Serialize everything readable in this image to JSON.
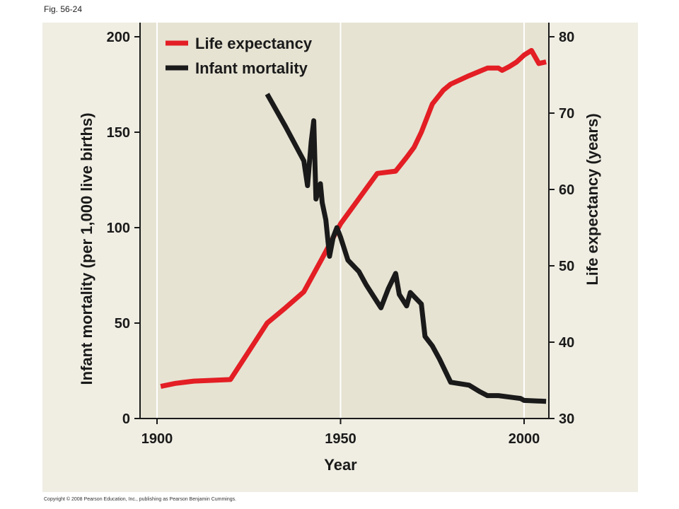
{
  "figure_label": "Fig. 56-24",
  "copyright": "Copyright © 2008 Pearson Education, Inc., publishing as Pearson Benjamin Cummings.",
  "chart_data": {
    "type": "line",
    "xlabel": "Year",
    "ylabel_left": "Infant mortality (per 1,000 live births)",
    "ylabel_right": "Life expectancy (years)",
    "xlim": [
      1896,
      2006
    ],
    "ylim_left": [
      0,
      200
    ],
    "ylim_right": [
      30,
      80
    ],
    "x_ticks": [
      "1900",
      "1950",
      "2000"
    ],
    "y_left_ticks": [
      "0",
      "50",
      "100",
      "150",
      "200"
    ],
    "y_right_ticks": [
      "30",
      "40",
      "50",
      "60",
      "70",
      "80"
    ],
    "grid": "vertical lines at 1950 and 2000",
    "legend": "top-left",
    "colors": {
      "life_expectancy": "#e31e24",
      "infant_mortality": "#1a1a1a",
      "plot_bg": "#e6e3d3",
      "panel_bg": "#f0eee3"
    },
    "series": [
      {
        "name": "Life expectancy",
        "axis": "right",
        "points": [
          [
            1901,
            34.2
          ],
          [
            1905,
            34.6
          ],
          [
            1910,
            34.9
          ],
          [
            1915,
            35.0
          ],
          [
            1920,
            35.1
          ],
          [
            1925,
            38.8
          ],
          [
            1930,
            42.5
          ],
          [
            1935,
            44.5
          ],
          [
            1940,
            46.6
          ],
          [
            1945,
            51.0
          ],
          [
            1950,
            55.5
          ],
          [
            1955,
            58.8
          ],
          [
            1960,
            62.1
          ],
          [
            1965,
            62.4
          ],
          [
            1968,
            64.2
          ],
          [
            1970,
            65.5
          ],
          [
            1972,
            67.5
          ],
          [
            1975,
            71.2
          ],
          [
            1978,
            73.0
          ],
          [
            1980,
            73.8
          ],
          [
            1985,
            74.9
          ],
          [
            1988,
            75.5
          ],
          [
            1990,
            75.9
          ],
          [
            1993,
            75.9
          ],
          [
            1994,
            75.6
          ],
          [
            1996,
            76.1
          ],
          [
            1998,
            76.7
          ],
          [
            2000,
            77.6
          ],
          [
            2002,
            78.2
          ],
          [
            2004,
            76.5
          ],
          [
            2006,
            76.7
          ]
        ]
      },
      {
        "name": "Infant mortality",
        "axis": "left",
        "points": [
          [
            1930,
            170
          ],
          [
            1935,
            153
          ],
          [
            1940,
            135
          ],
          [
            1941,
            122
          ],
          [
            1942,
            145
          ],
          [
            1942.7,
            156
          ],
          [
            1943.3,
            115
          ],
          [
            1944.5,
            123
          ],
          [
            1945,
            113
          ],
          [
            1946,
            104
          ],
          [
            1947,
            85
          ],
          [
            1948,
            95
          ],
          [
            1949,
            100
          ],
          [
            1950,
            95
          ],
          [
            1952,
            83
          ],
          [
            1955,
            77
          ],
          [
            1957,
            70
          ],
          [
            1960,
            61
          ],
          [
            1961,
            58
          ],
          [
            1963,
            68
          ],
          [
            1965,
            76
          ],
          [
            1966,
            65
          ],
          [
            1968,
            59
          ],
          [
            1969,
            66
          ],
          [
            1972,
            60
          ],
          [
            1973,
            43
          ],
          [
            1975,
            38
          ],
          [
            1977,
            31
          ],
          [
            1980,
            19
          ],
          [
            1985,
            17.5
          ],
          [
            1988,
            14
          ],
          [
            1990,
            12
          ],
          [
            1993,
            12
          ],
          [
            1997,
            11
          ],
          [
            1999,
            10.5
          ],
          [
            2000,
            9.5
          ],
          [
            2006,
            9
          ]
        ]
      }
    ]
  }
}
